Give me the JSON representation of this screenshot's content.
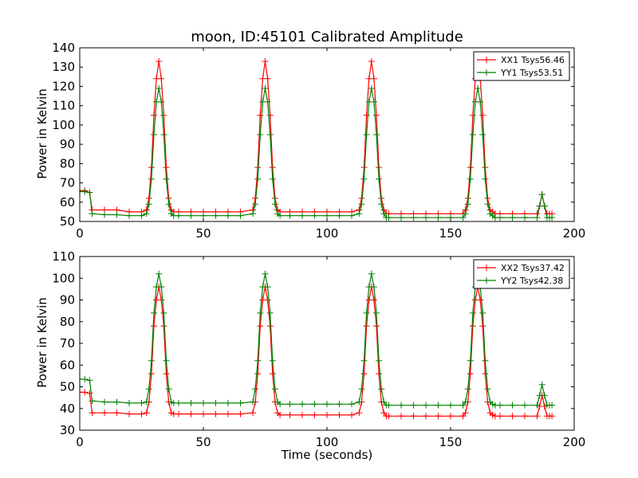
{
  "chart_data": [
    {
      "type": "line",
      "title": "moon, ID:45101 Calibrated Amplitude",
      "xlabel": "",
      "ylabel": "Power in Kelvin",
      "xlim": [
        0,
        200
      ],
      "ylim": [
        50,
        140
      ],
      "xticks": [
        0,
        50,
        100,
        150,
        200
      ],
      "yticks": [
        50,
        60,
        70,
        80,
        90,
        100,
        110,
        120,
        130,
        140
      ],
      "legend_position": "top-right",
      "grid": false,
      "series": [
        {
          "name": "XX1 Tsys56.46",
          "color": "#ff0000",
          "marker": "plus",
          "x": [
            0,
            2,
            4,
            5,
            10,
            15,
            20,
            25,
            27,
            28,
            29,
            30,
            31,
            32,
            33,
            34,
            35,
            36,
            37,
            38,
            40,
            45,
            50,
            55,
            60,
            65,
            70,
            71,
            72,
            73,
            74,
            75,
            76,
            77,
            78,
            79,
            80,
            81,
            85,
            90,
            95,
            100,
            105,
            110,
            113,
            114,
            115,
            116,
            117,
            118,
            119,
            120,
            121,
            122,
            123,
            124,
            125,
            130,
            135,
            140,
            145,
            150,
            155,
            156,
            157,
            158,
            159,
            160,
            161,
            162,
            163,
            164,
            165,
            166,
            167,
            168,
            170,
            175,
            180,
            185,
            186,
            187,
            188,
            189,
            190,
            191
          ],
          "y": [
            66,
            66,
            65,
            56,
            56,
            56,
            55,
            55,
            56,
            62,
            78,
            105,
            124,
            133,
            124,
            105,
            78,
            62,
            56,
            55,
            55,
            55,
            55,
            55,
            55,
            55,
            56,
            62,
            78,
            105,
            124,
            133,
            124,
            105,
            78,
            62,
            56,
            55,
            55,
            55,
            55,
            55,
            55,
            55,
            56,
            62,
            78,
            105,
            124,
            133,
            124,
            105,
            78,
            62,
            56,
            54,
            54,
            54,
            54,
            54,
            54,
            54,
            54,
            56,
            62,
            78,
            105,
            124,
            133,
            124,
            105,
            78,
            62,
            56,
            55,
            54,
            54,
            54,
            54,
            54,
            58,
            64,
            58,
            54,
            54,
            54
          ]
        },
        {
          "name": "YY1 Tsys53.51",
          "color": "#008000",
          "marker": "plus",
          "x": [
            0,
            2,
            4,
            5,
            10,
            15,
            20,
            25,
            27,
            28,
            29,
            30,
            31,
            32,
            33,
            34,
            35,
            36,
            37,
            38,
            40,
            45,
            50,
            55,
            60,
            65,
            70,
            71,
            72,
            73,
            74,
            75,
            76,
            77,
            78,
            79,
            80,
            81,
            85,
            90,
            95,
            100,
            105,
            110,
            113,
            114,
            115,
            116,
            117,
            118,
            119,
            120,
            121,
            122,
            123,
            124,
            125,
            130,
            135,
            140,
            145,
            150,
            155,
            156,
            157,
            158,
            159,
            160,
            161,
            162,
            163,
            164,
            165,
            166,
            167,
            168,
            170,
            175,
            180,
            185,
            186,
            187,
            188,
            189,
            190,
            191
          ],
          "y": [
            65.5,
            65.5,
            65,
            54,
            53.5,
            53.5,
            53,
            53,
            54,
            59,
            72,
            95,
            112,
            119,
            112,
            95,
            72,
            59,
            54,
            53,
            53,
            53,
            53,
            53,
            53,
            53,
            54,
            59,
            72,
            95,
            112,
            119,
            112,
            95,
            72,
            59,
            54,
            53,
            53,
            53,
            53,
            53,
            53,
            53,
            54,
            59,
            72,
            95,
            112,
            119,
            112,
            95,
            72,
            59,
            54,
            52,
            52,
            52,
            52,
            52,
            52,
            52,
            52,
            54,
            59,
            72,
            95,
            112,
            119,
            112,
            95,
            72,
            59,
            54,
            53,
            52,
            52,
            52,
            52,
            52,
            58,
            64,
            58,
            52,
            52,
            52
          ]
        }
      ]
    },
    {
      "type": "line",
      "title": "",
      "xlabel": "Time (seconds)",
      "ylabel": "Power in Kelvin",
      "xlim": [
        0,
        200
      ],
      "ylim": [
        30,
        110
      ],
      "xticks": [
        0,
        50,
        100,
        150,
        200
      ],
      "yticks": [
        30,
        40,
        50,
        60,
        70,
        80,
        90,
        100,
        110
      ],
      "legend_position": "top-right",
      "grid": false,
      "series": [
        {
          "name": "XX2 Tsys37.42",
          "color": "#ff0000",
          "marker": "plus",
          "x": [
            0,
            2,
            4,
            5,
            10,
            15,
            20,
            25,
            27,
            28,
            29,
            30,
            31,
            32,
            33,
            34,
            35,
            36,
            37,
            38,
            40,
            45,
            50,
            55,
            60,
            65,
            70,
            71,
            72,
            73,
            74,
            75,
            76,
            77,
            78,
            79,
            80,
            81,
            85,
            90,
            95,
            100,
            105,
            110,
            113,
            114,
            115,
            116,
            117,
            118,
            119,
            120,
            121,
            122,
            123,
            124,
            125,
            130,
            135,
            140,
            145,
            150,
            155,
            156,
            157,
            158,
            159,
            160,
            161,
            162,
            163,
            164,
            165,
            166,
            167,
            168,
            170,
            175,
            180,
            185,
            186,
            187,
            188,
            189,
            190,
            191
          ],
          "y": [
            47.5,
            47.5,
            47,
            38,
            38,
            38,
            37.5,
            37.5,
            38,
            43,
            56,
            78,
            90,
            96,
            90,
            78,
            56,
            43,
            38,
            37.5,
            37.5,
            37.5,
            37.5,
            37.5,
            37.5,
            37.5,
            38,
            43,
            56,
            78,
            90,
            96,
            90,
            78,
            56,
            43,
            38,
            37,
            37,
            37,
            37,
            37,
            37,
            37,
            38,
            43,
            56,
            78,
            90,
            96,
            90,
            78,
            56,
            43,
            38,
            36.5,
            36.5,
            36.5,
            36.5,
            36.5,
            36.5,
            36.5,
            36.5,
            38,
            43,
            56,
            78,
            90,
            96,
            90,
            78,
            56,
            43,
            38,
            37,
            36.5,
            36.5,
            36.5,
            36.5,
            36.5,
            41,
            46,
            41,
            36.5,
            36.5,
            36.5
          ]
        },
        {
          "name": "YY2 Tsys42.38",
          "color": "#008000",
          "marker": "plus",
          "x": [
            0,
            2,
            4,
            5,
            10,
            15,
            20,
            25,
            27,
            28,
            29,
            30,
            31,
            32,
            33,
            34,
            35,
            36,
            37,
            38,
            40,
            45,
            50,
            55,
            60,
            65,
            70,
            71,
            72,
            73,
            74,
            75,
            76,
            77,
            78,
            79,
            80,
            81,
            85,
            90,
            95,
            100,
            105,
            110,
            113,
            114,
            115,
            116,
            117,
            118,
            119,
            120,
            121,
            122,
            123,
            124,
            125,
            130,
            135,
            140,
            145,
            150,
            155,
            156,
            157,
            158,
            159,
            160,
            161,
            162,
            163,
            164,
            165,
            166,
            167,
            168,
            170,
            175,
            180,
            185,
            186,
            187,
            188,
            189,
            190,
            191
          ],
          "y": [
            53.5,
            53.5,
            53,
            43.5,
            43,
            43,
            42.5,
            42.5,
            43,
            49,
            62,
            84,
            96,
            102,
            96,
            84,
            62,
            49,
            43,
            42.5,
            42.5,
            42.5,
            42.5,
            42.5,
            42.5,
            42.5,
            43,
            49,
            62,
            84,
            96,
            102,
            96,
            84,
            62,
            49,
            43,
            42,
            42,
            42,
            42,
            42,
            42,
            42,
            43,
            49,
            62,
            84,
            96,
            102,
            96,
            84,
            62,
            49,
            43,
            41.5,
            41.5,
            41.5,
            41.5,
            41.5,
            41.5,
            41.5,
            41.5,
            43,
            49,
            62,
            84,
            96,
            102,
            96,
            84,
            62,
            49,
            43,
            42,
            41.5,
            41.5,
            41.5,
            41.5,
            41.5,
            46,
            51,
            46,
            41.5,
            41.5,
            41.5
          ]
        }
      ]
    }
  ]
}
